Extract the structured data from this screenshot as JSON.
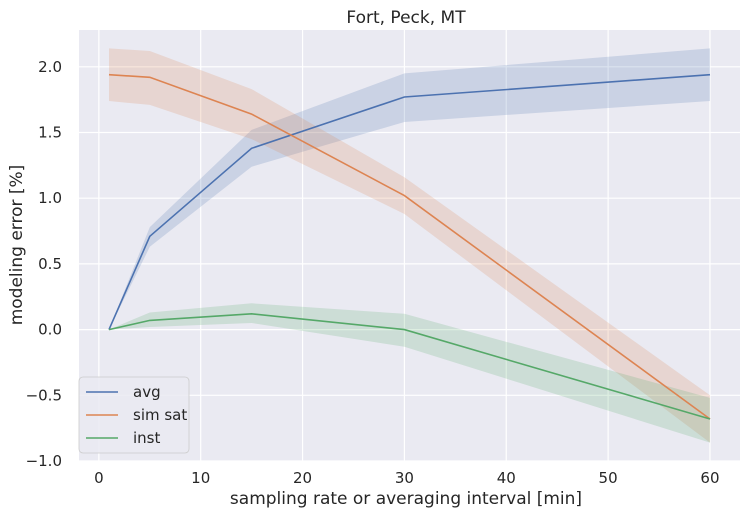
{
  "chart_data": {
    "type": "line",
    "title": "Fort, Peck, MT",
    "xlabel": "sampling rate or averaging interval [min]",
    "ylabel": "modeling error [%]",
    "xlim": [
      -1.95,
      62.95
    ],
    "ylim": [
      -1.0,
      2.28
    ],
    "xticks": [
      0,
      10,
      20,
      30,
      40,
      50,
      60
    ],
    "yticks": [
      -1.0,
      -0.5,
      0.0,
      0.5,
      1.0,
      1.5,
      2.0
    ],
    "ytick_labels": [
      "−1.0",
      "−0.5",
      "0.0",
      "0.5",
      "1.0",
      "1.5",
      "2.0"
    ],
    "grid": true,
    "legend_position": "lower-left",
    "background": "#eaeaf2",
    "x": [
      1,
      5,
      15,
      30,
      60
    ],
    "series": [
      {
        "name": "avg",
        "color": "#4c72b0",
        "values": [
          0.0,
          0.71,
          1.38,
          1.77,
          1.94
        ],
        "lower": [
          0.0,
          0.63,
          1.24,
          1.58,
          1.74
        ],
        "upper": [
          0.0,
          0.78,
          1.52,
          1.95,
          2.14
        ]
      },
      {
        "name": "sim sat",
        "color": "#dd8452",
        "values": [
          1.94,
          1.92,
          1.64,
          1.02,
          -0.68
        ],
        "lower": [
          1.74,
          1.71,
          1.45,
          0.88,
          -0.86
        ],
        "upper": [
          2.14,
          2.12,
          1.83,
          1.16,
          -0.5
        ]
      },
      {
        "name": "inst",
        "color": "#55a868",
        "values": [
          0.0,
          0.07,
          0.12,
          0.0,
          -0.68
        ],
        "lower": [
          0.0,
          0.02,
          0.05,
          -0.13,
          -0.86
        ],
        "upper": [
          0.0,
          0.13,
          0.2,
          0.12,
          -0.52
        ]
      }
    ]
  }
}
